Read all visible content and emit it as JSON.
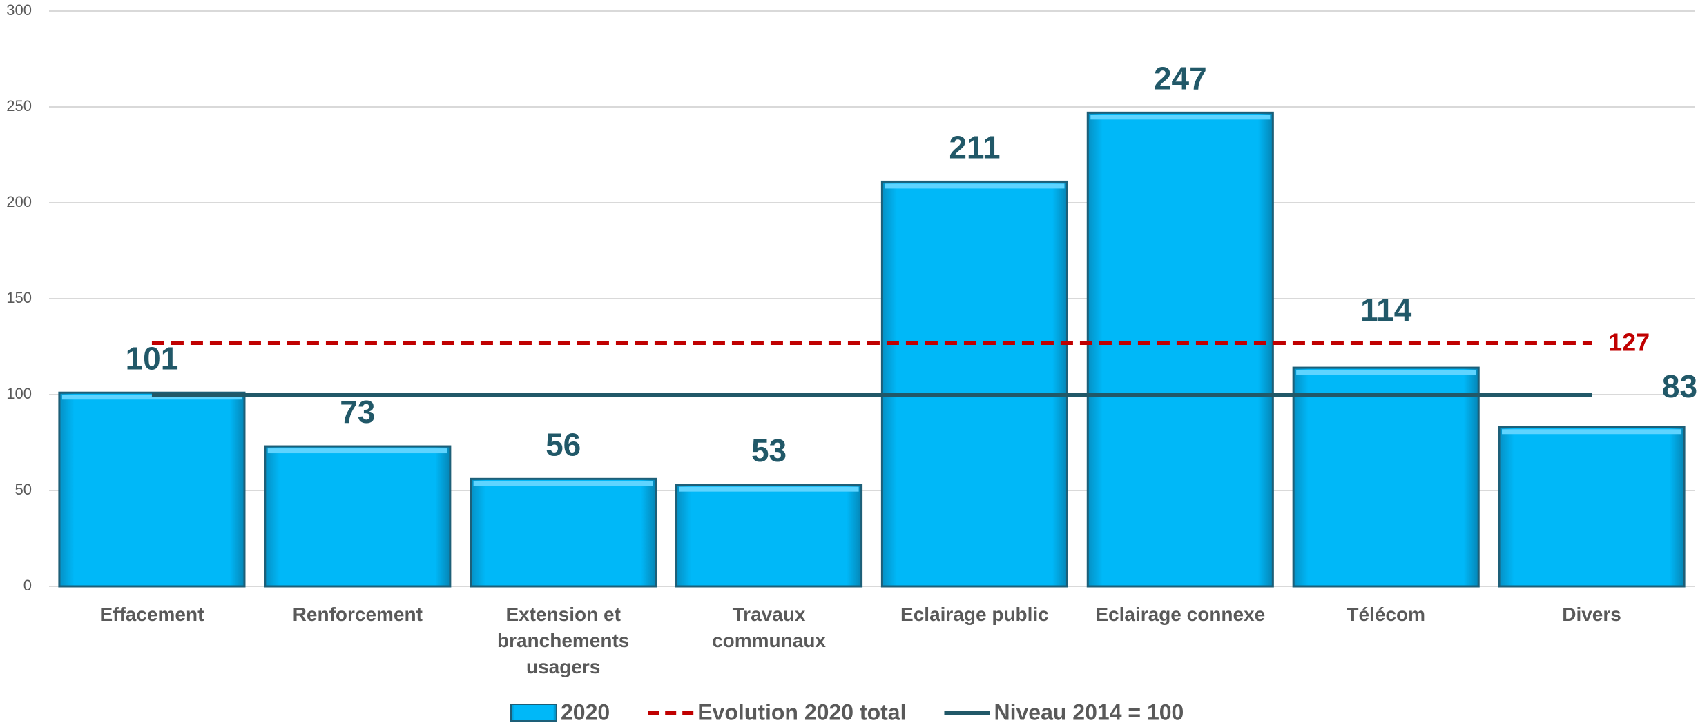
{
  "chart_data": {
    "type": "bar",
    "categories": [
      "Effacement",
      "Renforcement",
      "Extension et branchements usagers",
      "Travaux communaux",
      "Eclairage public",
      "Eclairage connexe",
      "Télécom",
      "Divers"
    ],
    "series": [
      {
        "name": "2020",
        "type": "bar",
        "color": "#00b0f0",
        "values": [
          101,
          73,
          56,
          53,
          211,
          247,
          114,
          83
        ]
      },
      {
        "name": "Evolution 2020 total",
        "type": "line",
        "dashed": true,
        "color": "#c00000",
        "values": [
          127,
          127,
          127,
          127,
          127,
          127,
          127,
          127
        ]
      },
      {
        "name": "Niveau 2014 = 100",
        "type": "line",
        "dashed": false,
        "color": "#215868",
        "values": [
          100,
          100,
          100,
          100,
          100,
          100,
          100,
          100
        ]
      }
    ],
    "ylim": [
      0,
      300
    ],
    "yticks": [
      0,
      50,
      100,
      150,
      200,
      250,
      300
    ],
    "grid": true,
    "legend": "bottom"
  }
}
